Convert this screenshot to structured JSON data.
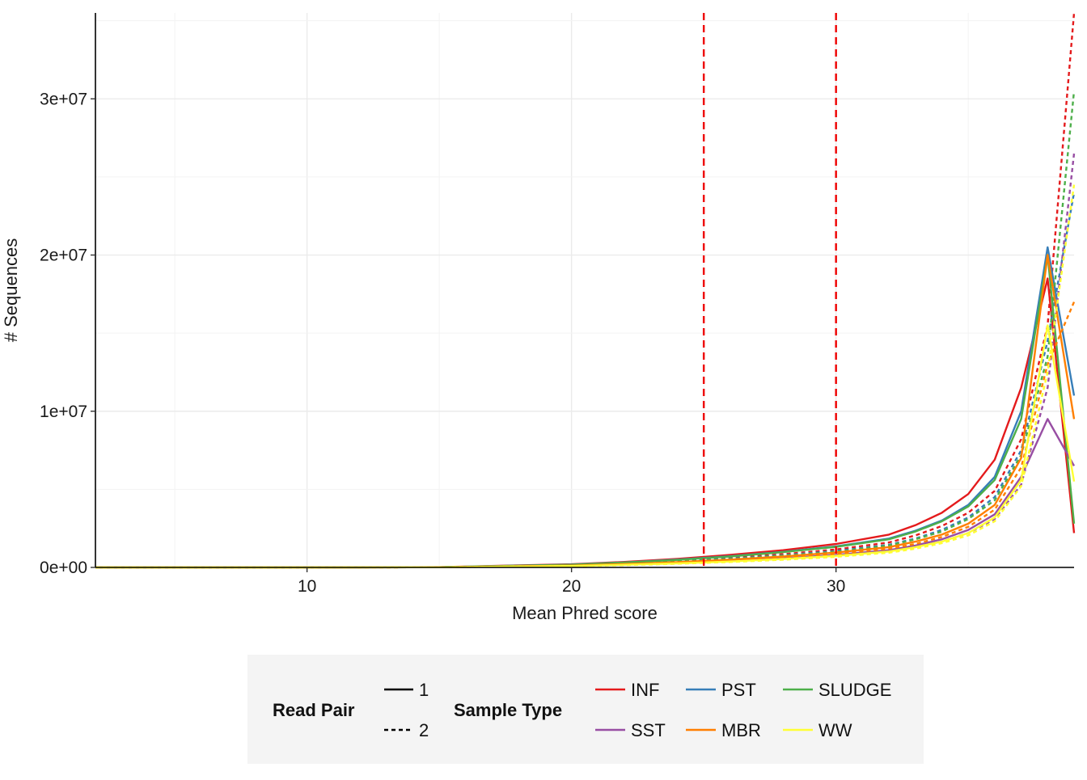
{
  "chart_data": {
    "type": "line",
    "xlabel": "Mean Phred score",
    "ylabel": "# Sequences",
    "xlim": [
      2,
      39
    ],
    "ylim": [
      0,
      35500000
    ],
    "x_ticks": [
      10,
      20,
      30
    ],
    "x_tick_labels": [
      "10",
      "20",
      "30"
    ],
    "y_ticks": [
      0,
      10000000,
      20000000,
      30000000
    ],
    "y_tick_labels": [
      "0e+00",
      "1e+07",
      "2e+07",
      "3e+07"
    ],
    "grid": true,
    "reference_lines": [
      {
        "x": 25,
        "color": "#ee0000",
        "style": "dashed"
      },
      {
        "x": 30,
        "color": "#ee0000",
        "style": "dashed"
      }
    ],
    "legend": {
      "placement": "bottom",
      "read_pair": {
        "title": "Read Pair",
        "items": [
          {
            "label": "1",
            "linetype": "solid"
          },
          {
            "label": "2",
            "linetype": "dashed"
          }
        ]
      },
      "sample_type": {
        "title": "Sample Type",
        "items": [
          {
            "label": "INF",
            "color": "#e41a1c"
          },
          {
            "label": "PST",
            "color": "#377eb8"
          },
          {
            "label": "SLUDGE",
            "color": "#4daf4a"
          },
          {
            "label": "SST",
            "color": "#984ea3"
          },
          {
            "label": "MBR",
            "color": "#ff7f00"
          },
          {
            "label": "WW",
            "color": "#ffff33"
          }
        ]
      }
    },
    "x": [
      2,
      5,
      10,
      15,
      20,
      22,
      24,
      26,
      28,
      30,
      32,
      33,
      34,
      35,
      36,
      37,
      38,
      39
    ],
    "series": [
      {
        "sample": "INF",
        "read": "1",
        "color": "#e41a1c",
        "dash": false,
        "values": [
          0,
          0,
          0,
          20000,
          200000,
          350000,
          550000,
          800000,
          1100000,
          1500000,
          2100000,
          2700000,
          3500000,
          4700000,
          6900000,
          11500000,
          18500000,
          2200000
        ]
      },
      {
        "sample": "INF",
        "read": "2",
        "color": "#e41a1c",
        "dash": true,
        "values": [
          0,
          0,
          0,
          15000,
          150000,
          270000,
          420000,
          600000,
          850000,
          1150000,
          1600000,
          2050000,
          2650000,
          3500000,
          4900000,
          8200000,
          15500000,
          35500000
        ]
      },
      {
        "sample": "PST",
        "read": "1",
        "color": "#377eb8",
        "dash": false,
        "values": [
          0,
          0,
          0,
          18000,
          180000,
          320000,
          500000,
          720000,
          1000000,
          1350000,
          1850000,
          2350000,
          3000000,
          4000000,
          5800000,
          10000000,
          20500000,
          11000000
        ]
      },
      {
        "sample": "PST",
        "read": "2",
        "color": "#377eb8",
        "dash": true,
        "values": [
          0,
          0,
          0,
          14000,
          140000,
          250000,
          390000,
          560000,
          780000,
          1050000,
          1450000,
          1850000,
          2400000,
          3200000,
          4500000,
          7500000,
          14500000,
          24000000
        ]
      },
      {
        "sample": "SLUDGE",
        "read": "1",
        "color": "#4daf4a",
        "dash": false,
        "values": [
          0,
          0,
          0,
          17000,
          170000,
          310000,
          480000,
          700000,
          980000,
          1320000,
          1800000,
          2300000,
          2950000,
          3900000,
          5600000,
          9500000,
          20000000,
          2800000
        ]
      },
      {
        "sample": "SLUDGE",
        "read": "2",
        "color": "#4daf4a",
        "dash": true,
        "values": [
          0,
          0,
          0,
          13000,
          130000,
          240000,
          370000,
          530000,
          750000,
          1000000,
          1400000,
          1800000,
          2300000,
          3100000,
          4300000,
          7200000,
          13500000,
          30500000
        ]
      },
      {
        "sample": "SST",
        "read": "1",
        "color": "#984ea3",
        "dash": false,
        "values": [
          0,
          0,
          0,
          10000,
          100000,
          180000,
          280000,
          410000,
          580000,
          800000,
          1100000,
          1400000,
          1800000,
          2400000,
          3400000,
          5800000,
          9500000,
          6500000
        ]
      },
      {
        "sample": "SST",
        "read": "2",
        "color": "#984ea3",
        "dash": true,
        "values": [
          0,
          0,
          0,
          9000,
          90000,
          160000,
          250000,
          370000,
          520000,
          720000,
          1000000,
          1300000,
          1650000,
          2200000,
          3100000,
          5300000,
          11500000,
          26500000
        ]
      },
      {
        "sample": "MBR",
        "read": "1",
        "color": "#ff7f00",
        "dash": false,
        "values": [
          0,
          0,
          0,
          12000,
          120000,
          220000,
          340000,
          500000,
          700000,
          950000,
          1300000,
          1650000,
          2100000,
          2800000,
          4000000,
          7000000,
          20000000,
          9500000
        ]
      },
      {
        "sample": "MBR",
        "read": "2",
        "color": "#ff7f00",
        "dash": true,
        "values": [
          0,
          0,
          0,
          11000,
          110000,
          200000,
          310000,
          450000,
          630000,
          860000,
          1200000,
          1500000,
          1950000,
          2600000,
          3700000,
          6400000,
          13000000,
          17000000
        ]
      },
      {
        "sample": "WW",
        "read": "1",
        "color": "#ffff33",
        "dash": false,
        "values": [
          0,
          0,
          0,
          9000,
          95000,
          170000,
          260000,
          380000,
          540000,
          740000,
          1020000,
          1300000,
          1650000,
          2200000,
          3200000,
          5600000,
          15500000,
          5500000
        ]
      },
      {
        "sample": "WW",
        "read": "2",
        "color": "#ffff33",
        "dash": true,
        "values": [
          0,
          0,
          0,
          8000,
          85000,
          150000,
          235000,
          345000,
          490000,
          680000,
          940000,
          1200000,
          1550000,
          2050000,
          2950000,
          5200000,
          12500000,
          24500000
        ]
      }
    ]
  }
}
